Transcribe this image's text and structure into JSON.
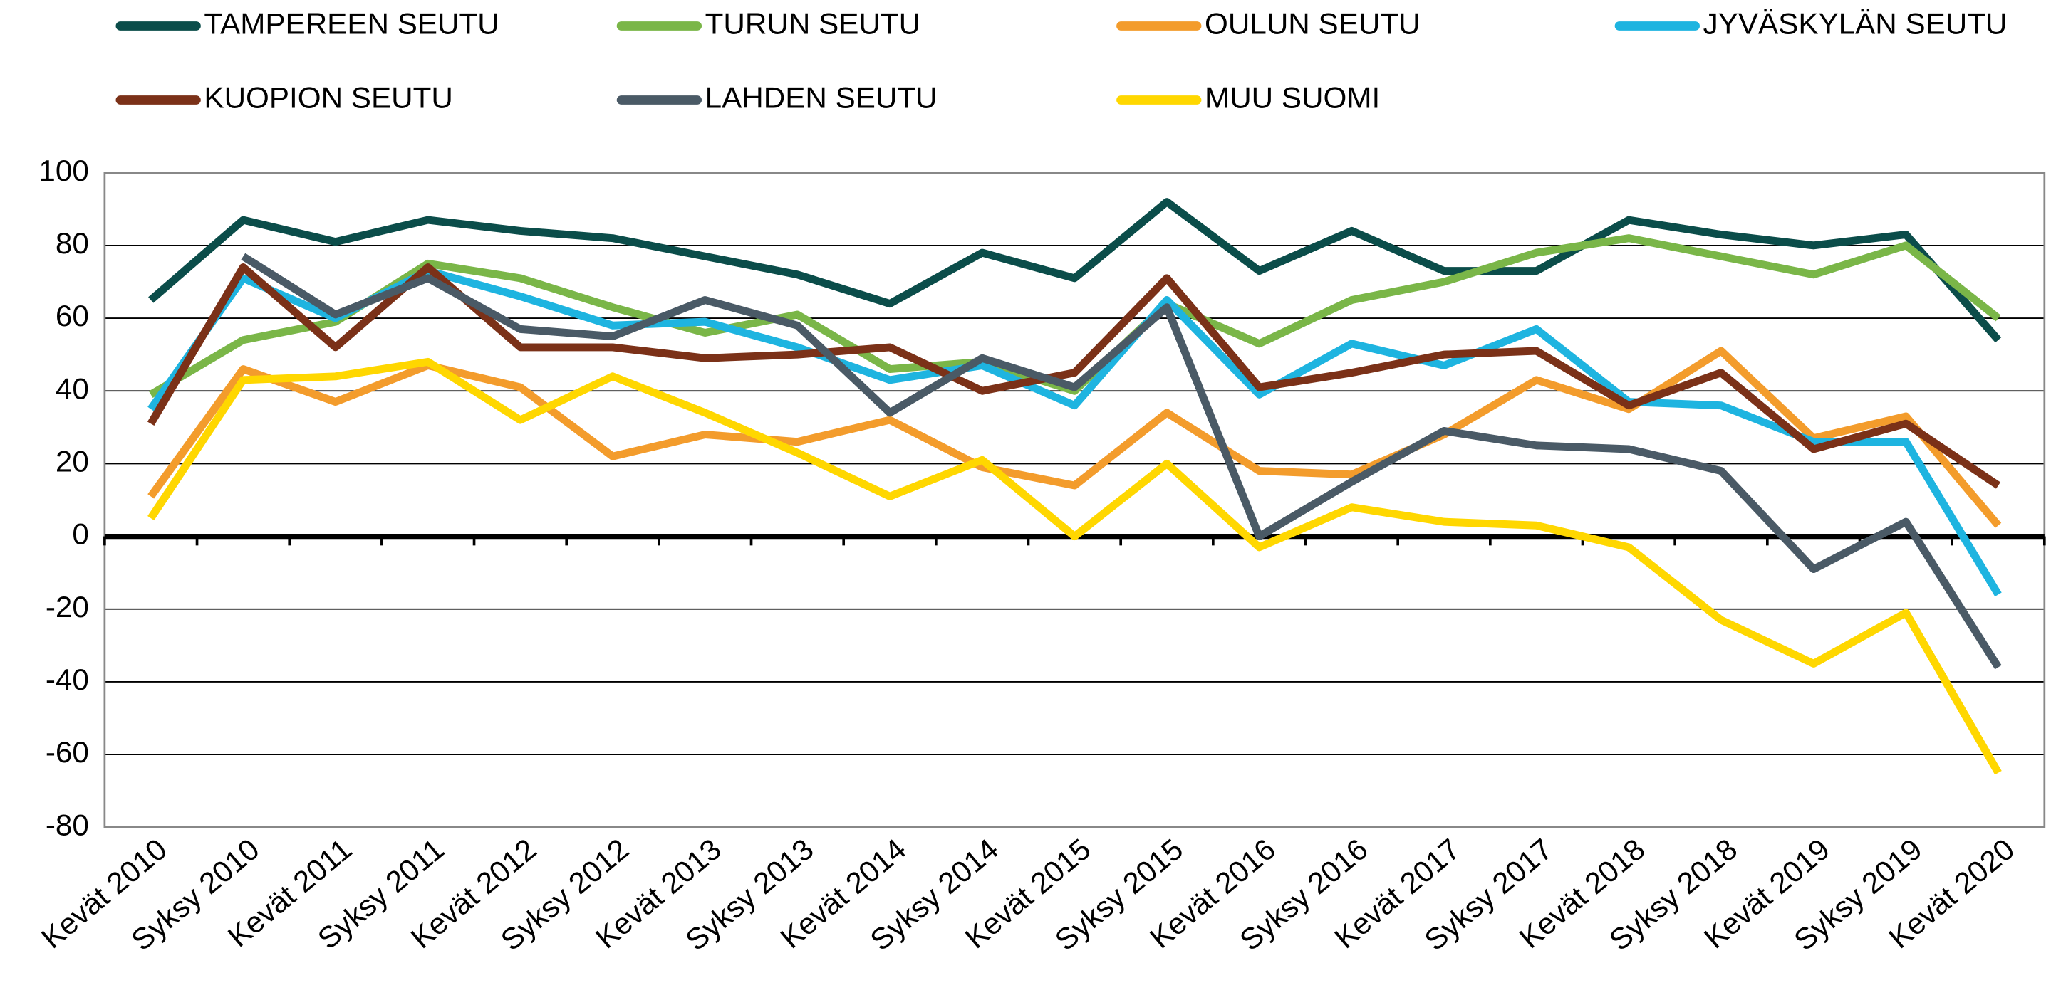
{
  "chart_data": {
    "type": "line",
    "categories": [
      "Kevät 2010",
      "Syksy 2010",
      "Kevät 2011",
      "Syksy 2011",
      "Kevät 2012",
      "Syksy 2012",
      "Kevät 2013",
      "Syksy 2013",
      "Kevät 2014",
      "Syksy 2014",
      "Kevät 2015",
      "Syksy 2015",
      "Kevät 2016",
      "Syksy 2016",
      "Kevät 2017",
      "Syksy 2017",
      "Kevät 2018",
      "Syksy 2018",
      "Kevät 2019",
      "Syksy 2019",
      "Kevät 2020"
    ],
    "series": [
      {
        "name": "TAMPEREEN SEUTU",
        "color": "#0b4d4a",
        "values": [
          65,
          87,
          81,
          87,
          84,
          82,
          77,
          72,
          64,
          78,
          71,
          92,
          73,
          84,
          73,
          73,
          87,
          83,
          80,
          83,
          54
        ]
      },
      {
        "name": "TURUN SEUTU",
        "color": "#7ab648",
        "values": [
          39,
          54,
          59,
          75,
          71,
          63,
          56,
          61,
          46,
          48,
          40,
          64,
          53,
          65,
          70,
          78,
          82,
          77,
          72,
          80,
          60
        ]
      },
      {
        "name": "OULUN SEUTU",
        "color": "#f39c2c",
        "values": [
          11,
          46,
          37,
          47,
          41,
          22,
          28,
          26,
          32,
          19,
          14,
          34,
          18,
          17,
          28,
          43,
          35,
          51,
          27,
          33,
          3
        ]
      },
      {
        "name": "JYVÄSKYLÄN SEUTU",
        "color": "#1eb4e0",
        "values": [
          35,
          71,
          60,
          73,
          66,
          58,
          59,
          52,
          43,
          47,
          36,
          65,
          39,
          53,
          47,
          57,
          37,
          36,
          26,
          26,
          -16
        ]
      },
      {
        "name": "KUOPION SEUTU",
        "color": "#7b3118",
        "values": [
          31,
          74,
          52,
          74,
          52,
          52,
          49,
          50,
          52,
          40,
          45,
          71,
          41,
          45,
          50,
          51,
          36,
          45,
          24,
          31,
          14
        ]
      },
      {
        "name": "LAHDEN SEUTU",
        "color": "#4a5a66",
        "values": [
          null,
          77,
          61,
          71,
          57,
          55,
          65,
          58,
          34,
          49,
          41,
          63,
          0,
          15,
          29,
          25,
          24,
          18,
          -9,
          4,
          -36
        ]
      },
      {
        "name": "MUU SUOMI",
        "color": "#ffd700",
        "values": [
          5,
          43,
          44,
          48,
          32,
          44,
          34,
          23,
          11,
          21,
          0,
          20,
          -3,
          8,
          4,
          3,
          -3,
          -23,
          -35,
          -21,
          -65
        ]
      }
    ],
    "ylim": [
      -80,
      100
    ],
    "yticks": [
      -80,
      -60,
      -40,
      -20,
      0,
      20,
      40,
      60,
      80,
      100
    ],
    "grid": true,
    "legend": "top"
  }
}
